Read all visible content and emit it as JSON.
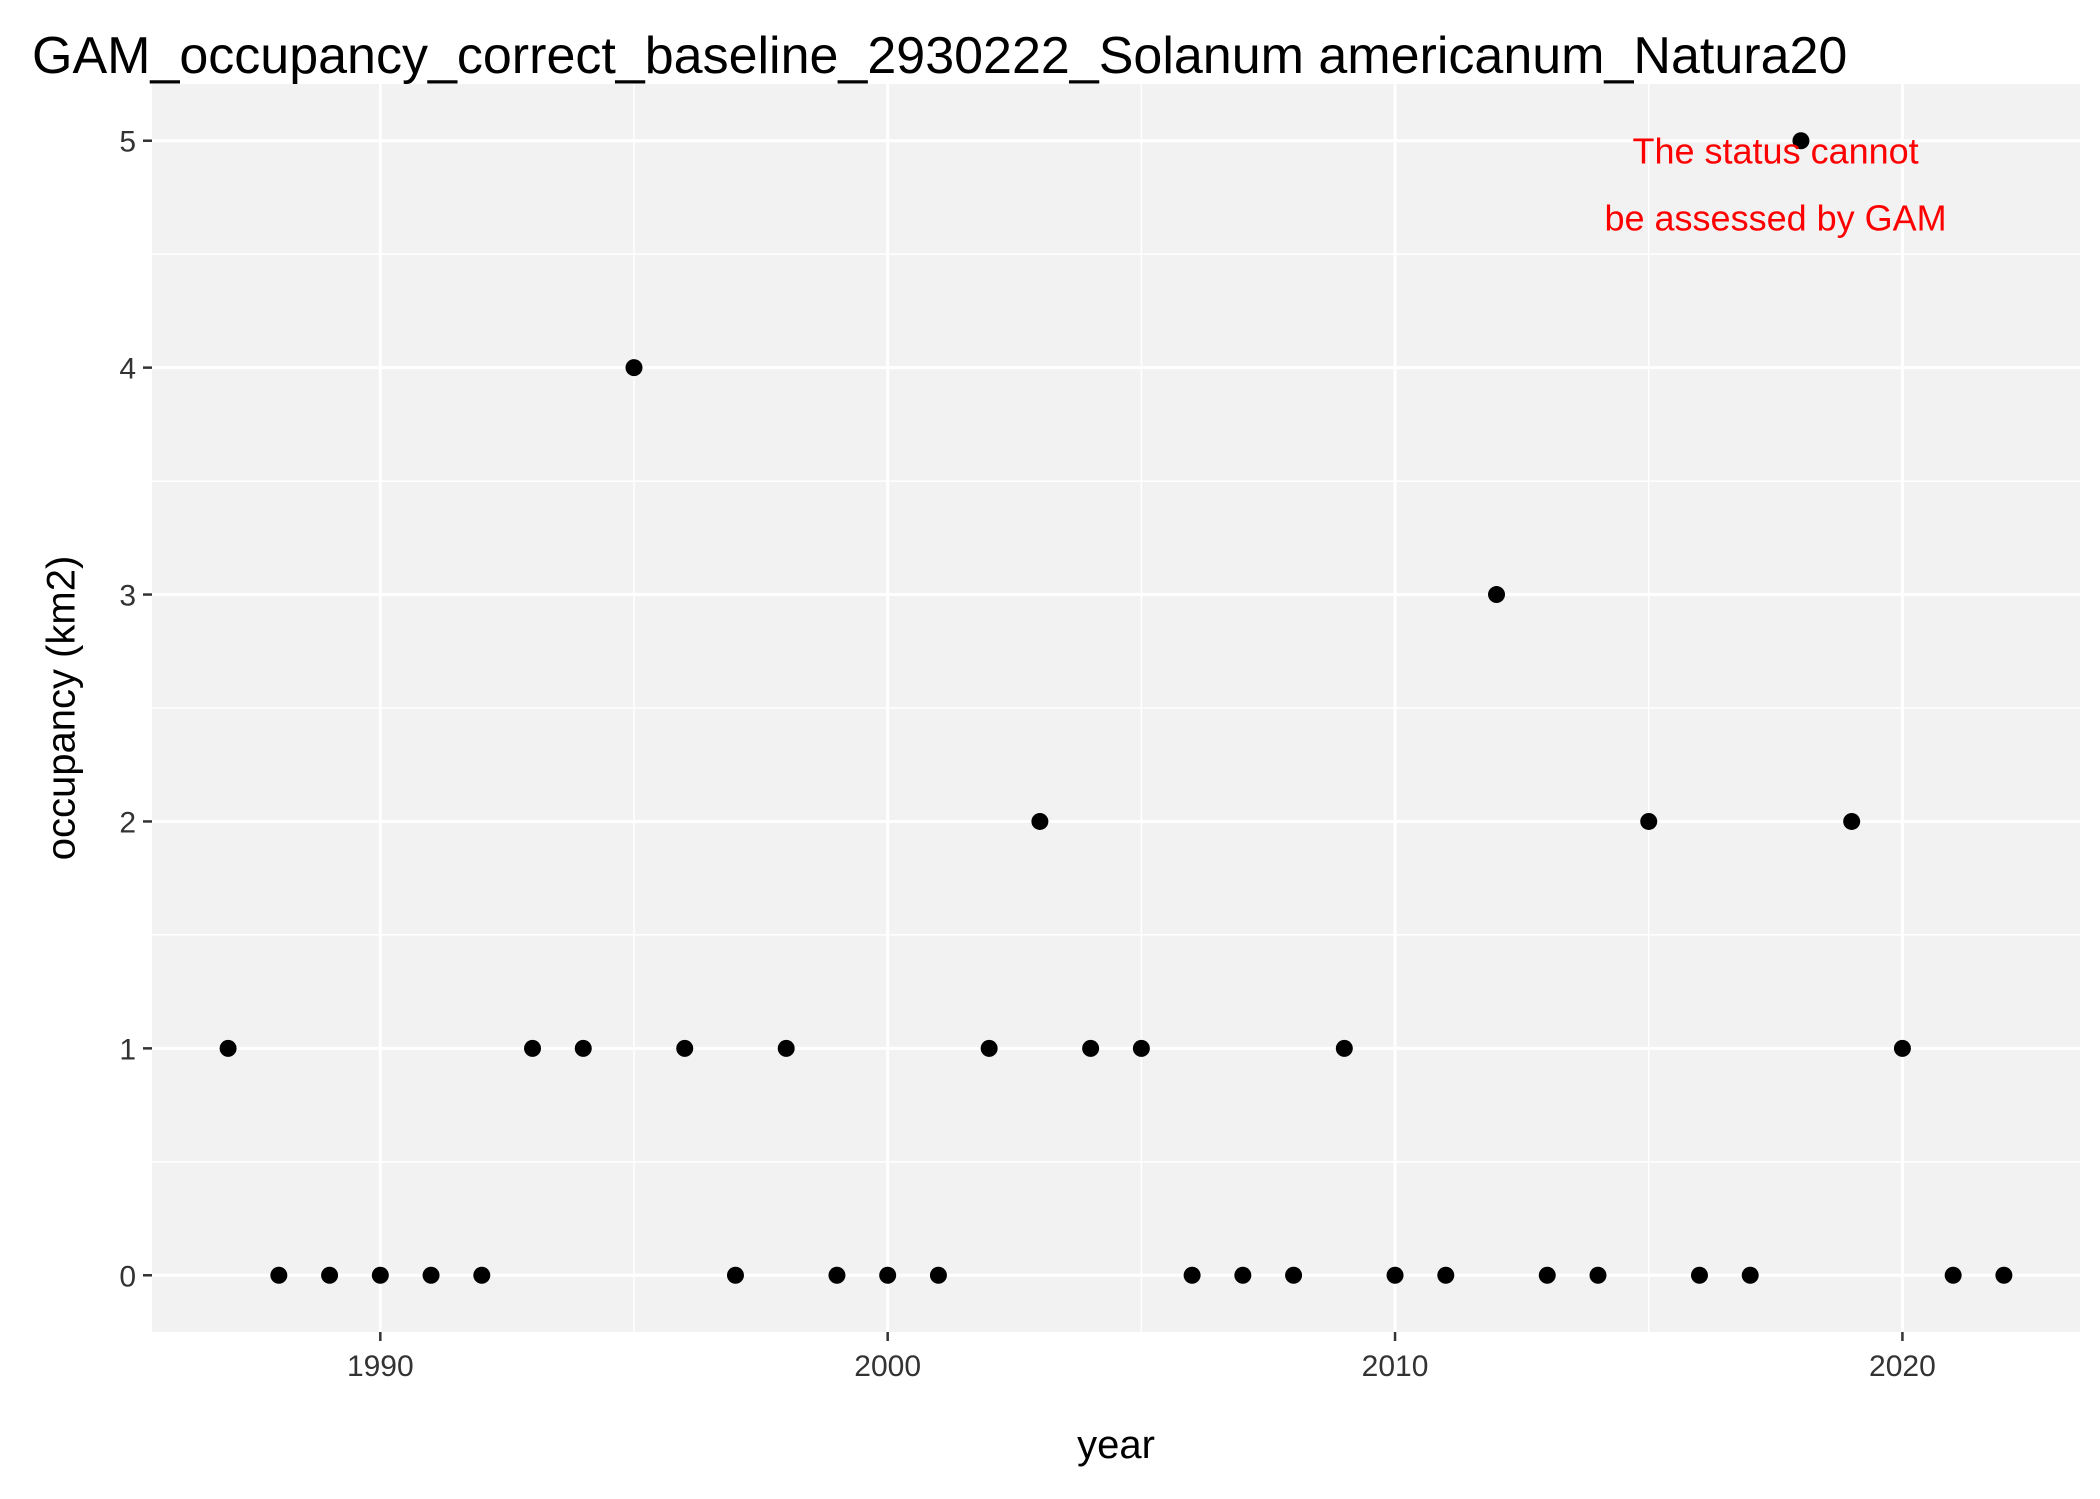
{
  "chart_data": {
    "type": "scatter",
    "title": "GAM_occupancy_correct_baseline_2930222_Solanum americanum_Natura20",
    "xlabel": "year",
    "ylabel": "occupancy (km2)",
    "xlim": [
      1985.5,
      2023.5
    ],
    "ylim": [
      -0.25,
      5.25
    ],
    "x_ticks": [
      1990,
      2000,
      2010,
      2020
    ],
    "y_ticks": [
      0,
      1,
      2,
      3,
      4,
      5
    ],
    "grid": true,
    "panel_background": "#f2f2f2",
    "point_color": "#000000",
    "annotation": {
      "lines": [
        "The status cannot",
        "be assessed by GAM"
      ],
      "color": "#ff0000",
      "position": "top-right"
    },
    "points": [
      {
        "x": 1987,
        "y": 1
      },
      {
        "x": 1988,
        "y": 0
      },
      {
        "x": 1989,
        "y": 0
      },
      {
        "x": 1990,
        "y": 0
      },
      {
        "x": 1991,
        "y": 0
      },
      {
        "x": 1992,
        "y": 0
      },
      {
        "x": 1993,
        "y": 1
      },
      {
        "x": 1994,
        "y": 1
      },
      {
        "x": 1995,
        "y": 4
      },
      {
        "x": 1996,
        "y": 1
      },
      {
        "x": 1997,
        "y": 0
      },
      {
        "x": 1998,
        "y": 1
      },
      {
        "x": 1999,
        "y": 0
      },
      {
        "x": 2000,
        "y": 0
      },
      {
        "x": 2001,
        "y": 0
      },
      {
        "x": 2002,
        "y": 1
      },
      {
        "x": 2003,
        "y": 2
      },
      {
        "x": 2004,
        "y": 1
      },
      {
        "x": 2005,
        "y": 1
      },
      {
        "x": 2006,
        "y": 0
      },
      {
        "x": 2007,
        "y": 0
      },
      {
        "x": 2008,
        "y": 0
      },
      {
        "x": 2009,
        "y": 1
      },
      {
        "x": 2010,
        "y": 0
      },
      {
        "x": 2011,
        "y": 0
      },
      {
        "x": 2012,
        "y": 3
      },
      {
        "x": 2013,
        "y": 0
      },
      {
        "x": 2014,
        "y": 0
      },
      {
        "x": 2015,
        "y": 2
      },
      {
        "x": 2016,
        "y": 0
      },
      {
        "x": 2017,
        "y": 0
      },
      {
        "x": 2018,
        "y": 5
      },
      {
        "x": 2019,
        "y": 2
      },
      {
        "x": 2020,
        "y": 1
      },
      {
        "x": 2021,
        "y": 0
      },
      {
        "x": 2022,
        "y": 0
      }
    ]
  }
}
